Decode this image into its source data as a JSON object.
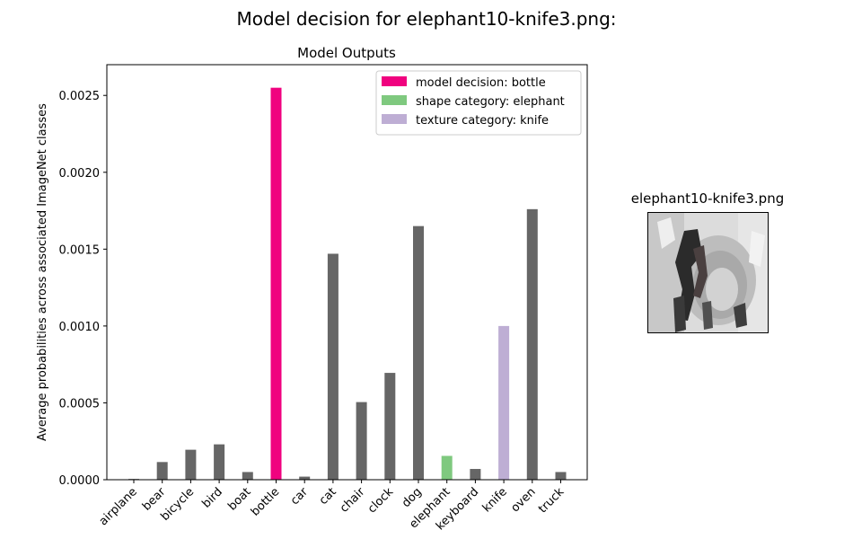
{
  "figure": {
    "suptitle": "Model decision for elephant10-knife3.png:"
  },
  "thumbnail": {
    "title": "elephant10-knife3.png"
  },
  "chart_data": {
    "type": "bar",
    "title": "Model Outputs",
    "xlabel": "",
    "ylabel": "Average probabilities across associated ImageNet classes",
    "ylim": [
      0,
      0.0027
    ],
    "yticks": [
      "0.0000",
      "0.0005",
      "0.0010",
      "0.0015",
      "0.0020",
      "0.0025"
    ],
    "ytick_values": [
      0,
      0.0005,
      0.001,
      0.0015,
      0.002,
      0.0025
    ],
    "categories": [
      "airplane",
      "bear",
      "bicycle",
      "bird",
      "boat",
      "bottle",
      "car",
      "cat",
      "chair",
      "clock",
      "dog",
      "elephant",
      "keyboard",
      "knife",
      "oven",
      "truck"
    ],
    "values": [
      5e-06,
      0.000115,
      0.000195,
      0.00023,
      5e-05,
      0.00255,
      2e-05,
      0.00147,
      0.000505,
      0.000695,
      0.00165,
      0.000155,
      7e-05,
      0.001,
      0.00176,
      5e-05
    ],
    "bar_colors": [
      "#666666",
      "#666666",
      "#666666",
      "#666666",
      "#666666",
      "#f0027f",
      "#666666",
      "#666666",
      "#666666",
      "#666666",
      "#666666",
      "#7fc97f",
      "#666666",
      "#beaed4",
      "#666666",
      "#666666"
    ],
    "legend_placement": "top-right",
    "legend": [
      {
        "label": "model decision: bottle",
        "color": "#f0027f"
      },
      {
        "label": "shape category: elephant",
        "color": "#7fc97f"
      },
      {
        "label": "texture category: knife",
        "color": "#beaed4"
      }
    ],
    "grid": false
  }
}
